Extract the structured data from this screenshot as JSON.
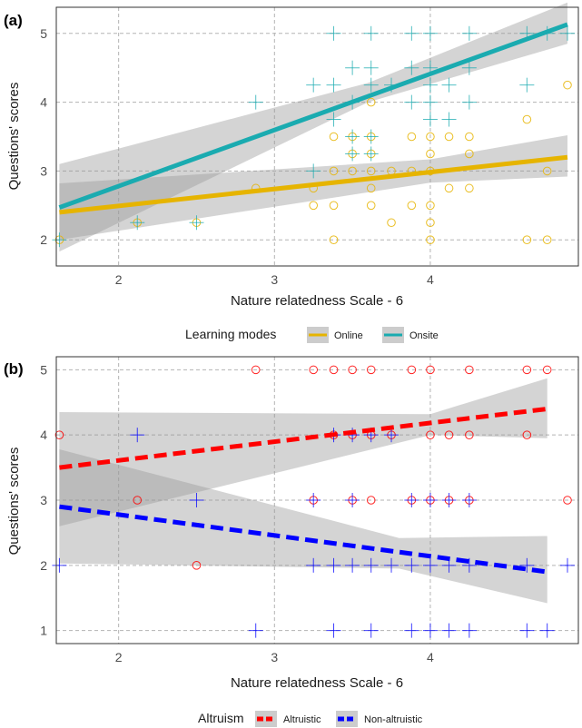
{
  "chart_data": [
    {
      "panel_label": "(a)",
      "type": "scatter",
      "xlabel": "Nature relatedness Scale - 6",
      "ylabel": "Questions' scores",
      "xlim": [
        1.6,
        4.95
      ],
      "ylim": [
        1.62,
        5.38
      ],
      "x_ticks": [
        "2",
        "3",
        "4",
        "5"
      ],
      "y_ticks": [
        "2",
        "3",
        "4",
        "5"
      ],
      "grid": true,
      "legend": {
        "title": "Learning modes",
        "placement": "bottom"
      },
      "series": [
        {
          "name": "Online",
          "color": "#e6b400",
          "marker": "circle",
          "line_style": "solid",
          "fit": {
            "x": [
              1.62,
              4.88
            ],
            "y": [
              2.4,
              3.2
            ]
          },
          "ci_lower": [
            [
              1.62,
              2.0
            ],
            [
              4.0,
              2.83
            ],
            [
              4.88,
              2.92
            ]
          ],
          "ci_upper": [
            [
              1.62,
              2.82
            ],
            [
              4.0,
              3.17
            ],
            [
              4.88,
              3.52
            ]
          ],
          "points": [
            [
              1.62,
              2.0
            ],
            [
              2.12,
              2.25
            ],
            [
              2.5,
              2.25
            ],
            [
              2.88,
              2.75
            ],
            [
              3.25,
              2.5
            ],
            [
              3.25,
              2.75
            ],
            [
              3.38,
              2.0
            ],
            [
              3.38,
              2.5
            ],
            [
              3.38,
              3.0
            ],
            [
              3.38,
              3.5
            ],
            [
              3.5,
              3.0
            ],
            [
              3.5,
              3.25
            ],
            [
              3.5,
              3.5
            ],
            [
              3.62,
              2.5
            ],
            [
              3.62,
              2.75
            ],
            [
              3.62,
              3.0
            ],
            [
              3.62,
              3.25
            ],
            [
              3.62,
              3.5
            ],
            [
              3.62,
              4.0
            ],
            [
              3.75,
              2.25
            ],
            [
              3.75,
              3.0
            ],
            [
              3.88,
              2.5
            ],
            [
              3.88,
              3.0
            ],
            [
              3.88,
              3.5
            ],
            [
              4.0,
              2.0
            ],
            [
              4.0,
              2.25
            ],
            [
              4.0,
              2.5
            ],
            [
              4.0,
              3.0
            ],
            [
              4.0,
              3.25
            ],
            [
              4.0,
              3.5
            ],
            [
              4.12,
              2.75
            ],
            [
              4.12,
              3.5
            ],
            [
              4.25,
              2.75
            ],
            [
              4.25,
              3.25
            ],
            [
              4.25,
              3.5
            ],
            [
              4.62,
              2.0
            ],
            [
              4.62,
              3.75
            ],
            [
              4.75,
              2.0
            ],
            [
              4.75,
              3.0
            ],
            [
              4.88,
              4.25
            ]
          ]
        },
        {
          "name": "Onsite",
          "color": "#1aabb0",
          "marker": "plus",
          "line_style": "solid",
          "fit": {
            "x": [
              1.62,
              4.88
            ],
            "y": [
              2.47,
              5.13
            ]
          },
          "ci_lower": [
            [
              1.62,
              1.83
            ],
            [
              3.6,
              4.0
            ],
            [
              4.88,
              4.85
            ]
          ],
          "ci_upper": [
            [
              1.62,
              3.1
            ],
            [
              3.6,
              4.28
            ],
            [
              4.88,
              5.45
            ]
          ],
          "points": [
            [
              1.62,
              2.0
            ],
            [
              2.12,
              2.25
            ],
            [
              2.5,
              2.25
            ],
            [
              2.88,
              4.0
            ],
            [
              3.25,
              3.0
            ],
            [
              3.25,
              4.25
            ],
            [
              3.38,
              3.75
            ],
            [
              3.38,
              4.25
            ],
            [
              3.38,
              5.0
            ],
            [
              3.5,
              3.25
            ],
            [
              3.5,
              3.5
            ],
            [
              3.5,
              4.0
            ],
            [
              3.5,
              4.5
            ],
            [
              3.62,
              3.25
            ],
            [
              3.62,
              3.5
            ],
            [
              3.62,
              4.25
            ],
            [
              3.62,
              4.5
            ],
            [
              3.62,
              5.0
            ],
            [
              3.75,
              4.25
            ],
            [
              3.88,
              4.0
            ],
            [
              3.88,
              4.5
            ],
            [
              3.88,
              5.0
            ],
            [
              4.0,
              3.75
            ],
            [
              4.0,
              4.0
            ],
            [
              4.0,
              4.25
            ],
            [
              4.0,
              4.5
            ],
            [
              4.0,
              5.0
            ],
            [
              4.12,
              3.75
            ],
            [
              4.12,
              4.25
            ],
            [
              4.25,
              4.0
            ],
            [
              4.25,
              4.5
            ],
            [
              4.25,
              5.0
            ],
            [
              4.62,
              4.25
            ],
            [
              4.62,
              5.0
            ],
            [
              4.75,
              5.0
            ],
            [
              4.88,
              5.0
            ]
          ]
        }
      ]
    },
    {
      "panel_label": "(b)",
      "type": "scatter",
      "xlabel": "Nature relatedness Scale - 6",
      "ylabel": "Questions' scores",
      "xlim": [
        1.6,
        4.95
      ],
      "ylim": [
        0.8,
        5.2
      ],
      "x_ticks": [
        "2",
        "3",
        "4",
        "5"
      ],
      "y_ticks": [
        "1",
        "2",
        "3",
        "4",
        "5"
      ],
      "grid": true,
      "legend": {
        "title": "Altruism",
        "placement": "bottom"
      },
      "series": [
        {
          "name": "Altruistic",
          "color": "#ff0000",
          "marker": "circle",
          "line_style": "dashed",
          "fit": {
            "x": [
              1.62,
              4.75
            ],
            "y": [
              3.5,
              4.4
            ]
          },
          "ci_lower": [
            [
              1.62,
              2.6
            ],
            [
              4.0,
              4.0
            ],
            [
              4.75,
              3.95
            ]
          ],
          "ci_upper": [
            [
              1.62,
              4.35
            ],
            [
              4.0,
              4.32
            ],
            [
              4.75,
              4.87
            ]
          ],
          "points": [
            [
              1.62,
              4.0
            ],
            [
              2.12,
              3.0
            ],
            [
              2.5,
              2.0
            ],
            [
              2.88,
              5.0
            ],
            [
              3.25,
              5.0
            ],
            [
              3.25,
              3.0
            ],
            [
              3.38,
              4.0
            ],
            [
              3.38,
              5.0
            ],
            [
              3.5,
              5.0
            ],
            [
              3.5,
              4.0
            ],
            [
              3.5,
              3.0
            ],
            [
              3.62,
              5.0
            ],
            [
              3.62,
              4.0
            ],
            [
              3.62,
              3.0
            ],
            [
              3.75,
              4.0
            ],
            [
              3.88,
              5.0
            ],
            [
              3.88,
              3.0
            ],
            [
              4.0,
              5.0
            ],
            [
              4.0,
              4.0
            ],
            [
              4.0,
              3.0
            ],
            [
              4.12,
              4.0
            ],
            [
              4.12,
              3.0
            ],
            [
              4.25,
              5.0
            ],
            [
              4.25,
              4.0
            ],
            [
              4.25,
              3.0
            ],
            [
              4.62,
              5.0
            ],
            [
              4.62,
              4.0
            ],
            [
              4.75,
              5.0
            ],
            [
              4.88,
              3.0
            ]
          ]
        },
        {
          "name": "Non-altruistic",
          "color": "#0000ff",
          "marker": "plus",
          "line_style": "dashed",
          "fit": {
            "x": [
              1.62,
              4.75
            ],
            "y": [
              2.9,
              1.9
            ]
          },
          "ci_lower": [
            [
              1.62,
              2.03
            ],
            [
              3.8,
              1.95
            ],
            [
              4.75,
              1.42
            ]
          ],
          "ci_upper": [
            [
              1.62,
              3.78
            ],
            [
              3.8,
              2.42
            ],
            [
              4.75,
              2.45
            ]
          ],
          "points": [
            [
              1.62,
              2.0
            ],
            [
              2.12,
              4.0
            ],
            [
              2.5,
              3.0
            ],
            [
              2.88,
              1.0
            ],
            [
              3.25,
              2.0
            ],
            [
              3.25,
              3.0
            ],
            [
              3.38,
              1.0
            ],
            [
              3.38,
              2.0
            ],
            [
              3.38,
              4.0
            ],
            [
              3.5,
              2.0
            ],
            [
              3.5,
              3.0
            ],
            [
              3.5,
              4.0
            ],
            [
              3.62,
              1.0
            ],
            [
              3.62,
              2.0
            ],
            [
              3.62,
              4.0
            ],
            [
              3.75,
              2.0
            ],
            [
              3.75,
              4.0
            ],
            [
              3.88,
              1.0
            ],
            [
              3.88,
              2.0
            ],
            [
              3.88,
              3.0
            ],
            [
              4.0,
              1.0
            ],
            [
              4.0,
              2.0
            ],
            [
              4.0,
              3.0
            ],
            [
              4.12,
              1.0
            ],
            [
              4.12,
              2.0
            ],
            [
              4.12,
              3.0
            ],
            [
              4.25,
              1.0
            ],
            [
              4.25,
              2.0
            ],
            [
              4.25,
              3.0
            ],
            [
              4.62,
              1.0
            ],
            [
              4.62,
              2.0
            ],
            [
              4.75,
              1.0
            ],
            [
              4.88,
              2.0
            ]
          ]
        }
      ]
    }
  ]
}
